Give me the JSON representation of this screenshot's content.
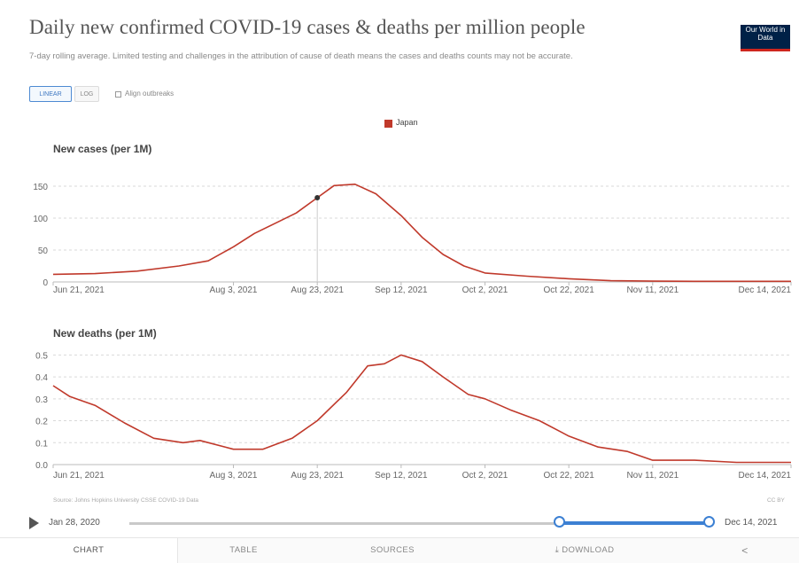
{
  "header": {
    "title": "Daily new confirmed COVID-19 cases & deaths per million people",
    "subtitle": "7-day rolling average. Limited testing and challenges in the attribution of cause of death means the cases and deaths counts may not be accurate.",
    "logo": "Our World in Data"
  },
  "controls": {
    "linear_label": "LINEAR",
    "log_label": "LOG",
    "align_label": "Align outbreaks"
  },
  "legend": {
    "label": "Japan",
    "color": "#c0392b"
  },
  "colors": {
    "series": "#c0392b",
    "grid": "#d9d9d9",
    "accent": "#3c80d3"
  },
  "chart_data": [
    {
      "type": "line",
      "title": "New cases (per 1M)",
      "x_tick_labels": [
        "Jun 21, 2021",
        "Aug 3, 2021",
        "Aug 23, 2021",
        "Sep 12, 2021",
        "Oct 2, 2021",
        "Oct 22, 2021",
        "Nov 11, 2021",
        "Dec 14, 2021"
      ],
      "y_ticks": [
        0,
        50,
        100,
        150
      ],
      "ylim": [
        0,
        175
      ],
      "xlim": [
        "2021-06-21",
        "2021-12-14"
      ],
      "series": [
        {
          "name": "Japan",
          "x": [
            "2021-06-21",
            "2021-07-01",
            "2021-07-11",
            "2021-07-21",
            "2021-07-28",
            "2021-08-03",
            "2021-08-08",
            "2021-08-13",
            "2021-08-18",
            "2021-08-23",
            "2021-08-27",
            "2021-09-01",
            "2021-09-06",
            "2021-09-12",
            "2021-09-17",
            "2021-09-22",
            "2021-09-27",
            "2021-10-02",
            "2021-10-12",
            "2021-10-22",
            "2021-11-01",
            "2021-11-11",
            "2021-11-21",
            "2021-12-01",
            "2021-12-14"
          ],
          "values": [
            12,
            13,
            17,
            25,
            33,
            55,
            76,
            92,
            108,
            132,
            151,
            153,
            138,
            104,
            70,
            43,
            25,
            14,
            9,
            5,
            2,
            1.2,
            1,
            1,
            1
          ]
        }
      ]
    },
    {
      "type": "line",
      "title": "New deaths (per 1M)",
      "x_tick_labels": [
        "Jun 21, 2021",
        "Aug 3, 2021",
        "Aug 23, 2021",
        "Sep 12, 2021",
        "Oct 2, 2021",
        "Oct 22, 2021",
        "Nov 11, 2021",
        "Dec 14, 2021"
      ],
      "y_ticks": [
        0,
        0.1,
        0.2,
        0.3,
        0.4,
        0.5
      ],
      "ylim": [
        0,
        0.55
      ],
      "xlim": [
        "2021-06-21",
        "2021-12-14"
      ],
      "series": [
        {
          "name": "Japan",
          "x": [
            "2021-06-21",
            "2021-06-25",
            "2021-07-01",
            "2021-07-08",
            "2021-07-15",
            "2021-07-22",
            "2021-07-26",
            "2021-08-03",
            "2021-08-10",
            "2021-08-17",
            "2021-08-23",
            "2021-08-30",
            "2021-09-04",
            "2021-09-08",
            "2021-09-12",
            "2021-09-17",
            "2021-09-22",
            "2021-09-28",
            "2021-10-02",
            "2021-10-08",
            "2021-10-15",
            "2021-10-22",
            "2021-10-29",
            "2021-11-05",
            "2021-11-11",
            "2021-11-21",
            "2021-12-01",
            "2021-12-14"
          ],
          "values": [
            0.36,
            0.31,
            0.27,
            0.19,
            0.12,
            0.1,
            0.11,
            0.07,
            0.07,
            0.12,
            0.2,
            0.33,
            0.45,
            0.46,
            0.5,
            0.47,
            0.4,
            0.32,
            0.3,
            0.25,
            0.2,
            0.13,
            0.08,
            0.06,
            0.02,
            0.02,
            0.01,
            0.01
          ]
        }
      ]
    }
  ],
  "footer": {
    "source": "Source: Johns Hopkins University CSSE COVID-19 Data",
    "license": "CC BY"
  },
  "timeline": {
    "start_label": "Jan 28, 2020",
    "end_label": "Dec 14, 2021"
  },
  "tabs": {
    "chart": "CHART",
    "table": "TABLE",
    "sources": "SOURCES",
    "download": "DOWNLOAD",
    "share": "<"
  }
}
